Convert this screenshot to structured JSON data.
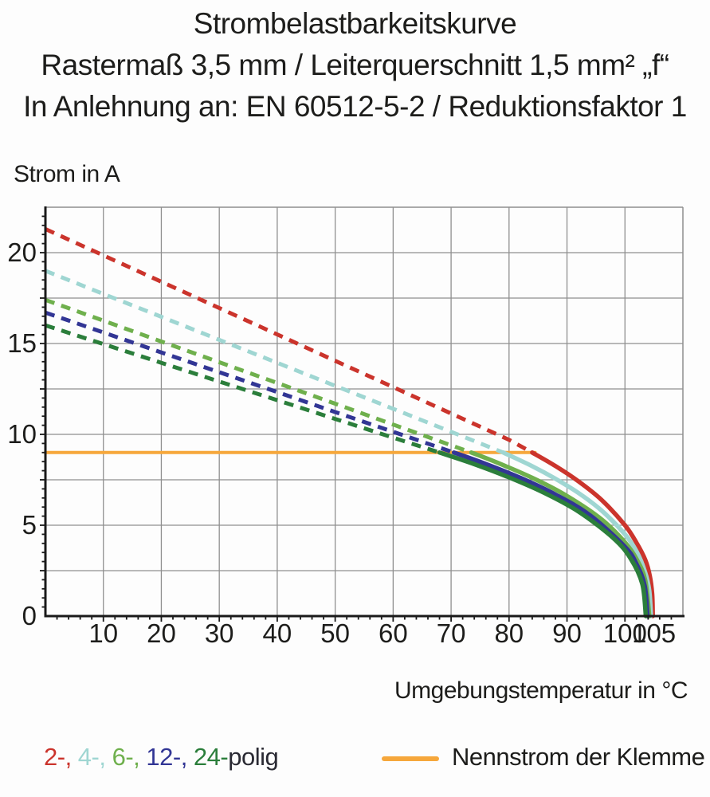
{
  "title": {
    "line1": "Strombelastbarkeitskurve",
    "line2": "Rastermaß 3,5 mm / Leiterquerschnitt 1,5 mm² „f“",
    "line3": "In Anlehnung an: EN 60512-5-2 / Reduktionsfaktor 1"
  },
  "y_axis_title": "Strom in A",
  "x_axis_title": "Umgebungstemperatur in °C",
  "legend": {
    "pole_tokens": [
      {
        "text": "2-, ",
        "color": "#cb342c"
      },
      {
        "text": "4-, ",
        "color": "#9fd6d2"
      },
      {
        "text": "6-, ",
        "color": "#6fb04d"
      },
      {
        "text": "12-, ",
        "color": "#323695"
      },
      {
        "text": "24-",
        "color": "#2b7e3b"
      },
      {
        "text": "polig",
        "color": "#2a2a33"
      }
    ],
    "nominal_label": "Nennstrom der Klemme",
    "nominal_color": "#f6a73b"
  },
  "chart_data": {
    "type": "line",
    "title": "Strombelastbarkeitskurve",
    "xlabel": "Umgebungstemperatur in °C",
    "ylabel": "Strom in A",
    "xlim": [
      0,
      110
    ],
    "ylim": [
      0,
      22.5
    ],
    "grid": true,
    "grid_color": "#8f8f8f",
    "axis_color": "#1a1a1a",
    "text_color": "#1d1d1b",
    "x_grid_values": [
      10,
      20,
      30,
      40,
      50,
      60,
      70,
      80,
      90,
      100
    ],
    "y_grid_values": [
      2.5,
      5,
      7.5,
      10,
      12.5,
      15,
      17.5,
      20
    ],
    "x_tick_labels": [
      10,
      20,
      30,
      40,
      50,
      60,
      70,
      80,
      90,
      100,
      105
    ],
    "y_tick_labels": [
      0,
      5,
      10,
      15,
      20
    ],
    "x_minor_tick_step": 2,
    "y_minor_tick_step": 0.5,
    "nominal_current": {
      "label": "Nennstrom der Klemme",
      "value": 9,
      "x_start": 0,
      "x_end": 84.5,
      "color": "#f6a73b"
    },
    "series": [
      {
        "name": "2-polig",
        "color": "#cb342c",
        "dashed_points": [
          [
            0,
            21.3
          ],
          [
            10,
            19.85
          ],
          [
            20,
            18.4
          ],
          [
            30,
            16.95
          ],
          [
            40,
            15.5
          ],
          [
            50,
            14.05
          ],
          [
            60,
            12.6
          ],
          [
            70,
            11.15
          ],
          [
            80,
            9.7
          ],
          [
            84,
            9.0
          ]
        ],
        "solid_points": [
          [
            84,
            9.0
          ],
          [
            88,
            8.26
          ],
          [
            92,
            7.41
          ],
          [
            96,
            6.38
          ],
          [
            100,
            5.0
          ],
          [
            102,
            4.03
          ],
          [
            103.5,
            3.1
          ],
          [
            104.3,
            2.2
          ],
          [
            104.7,
            1.2
          ],
          [
            104.8,
            0
          ]
        ]
      },
      {
        "name": "4-polig",
        "color": "#9fd6d2",
        "dashed_points": [
          [
            0,
            19.0
          ],
          [
            10,
            17.73
          ],
          [
            20,
            16.47
          ],
          [
            30,
            15.2
          ],
          [
            40,
            13.94
          ],
          [
            50,
            12.67
          ],
          [
            60,
            11.41
          ],
          [
            70,
            10.14
          ],
          [
            79,
            9.0
          ]
        ],
        "solid_points": [
          [
            79,
            9.0
          ],
          [
            84,
            8.25
          ],
          [
            88,
            7.56
          ],
          [
            92,
            6.77
          ],
          [
            96,
            5.8
          ],
          [
            100,
            4.5
          ],
          [
            102,
            3.56
          ],
          [
            103.5,
            2.4
          ],
          [
            104.2,
            1.4
          ],
          [
            104.5,
            0
          ]
        ]
      },
      {
        "name": "6-polig",
        "color": "#6fb04d",
        "dashed_points": [
          [
            0,
            17.4
          ],
          [
            10,
            16.26
          ],
          [
            20,
            15.11
          ],
          [
            30,
            13.97
          ],
          [
            40,
            12.83
          ],
          [
            50,
            11.69
          ],
          [
            60,
            10.54
          ],
          [
            70,
            9.4
          ],
          [
            73.5,
            9.0
          ]
        ],
        "solid_points": [
          [
            73.5,
            9.0
          ],
          [
            78,
            8.44
          ],
          [
            84,
            7.61
          ],
          [
            90,
            6.61
          ],
          [
            96,
            5.31
          ],
          [
            100,
            4.06
          ],
          [
            102,
            3.14
          ],
          [
            103.5,
            1.98
          ],
          [
            104.2,
            0
          ]
        ]
      },
      {
        "name": "12-polig",
        "color": "#323695",
        "dashed_points": [
          [
            0,
            16.7
          ],
          [
            10,
            15.61
          ],
          [
            20,
            14.51
          ],
          [
            30,
            13.42
          ],
          [
            40,
            12.33
          ],
          [
            50,
            11.23
          ],
          [
            60,
            10.14
          ],
          [
            70.5,
            9.0
          ]
        ],
        "solid_points": [
          [
            70.5,
            9.0
          ],
          [
            76,
            8.37
          ],
          [
            82,
            7.6
          ],
          [
            88,
            6.69
          ],
          [
            94,
            5.54
          ],
          [
            100,
            3.81
          ],
          [
            102,
            2.86
          ],
          [
            103.4,
            1.68
          ],
          [
            103.9,
            0
          ]
        ]
      },
      {
        "name": "24-polig",
        "color": "#2b7e3b",
        "dashed_points": [
          [
            0,
            16.0
          ],
          [
            10,
            14.97
          ],
          [
            20,
            13.94
          ],
          [
            30,
            12.91
          ],
          [
            40,
            11.88
          ],
          [
            50,
            10.85
          ],
          [
            60,
            9.82
          ],
          [
            68,
            9.0
          ]
        ],
        "solid_points": [
          [
            68,
            9.0
          ],
          [
            74,
            8.36
          ],
          [
            80,
            7.63
          ],
          [
            86,
            6.79
          ],
          [
            92,
            5.75
          ],
          [
            98,
            4.29
          ],
          [
            101,
            3.16
          ],
          [
            103,
            1.76
          ],
          [
            103.6,
            0
          ]
        ]
      }
    ]
  }
}
